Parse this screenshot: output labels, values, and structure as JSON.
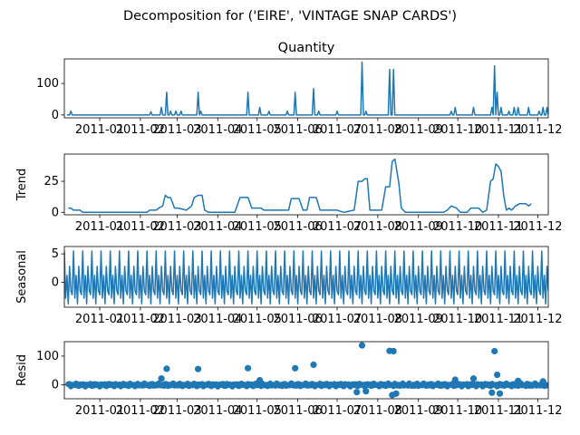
{
  "figure": {
    "suptitle": "Decomposition for ('EIRE', 'VINTAGE SNAP CARDS')",
    "line_color": "#1f77b4"
  },
  "chart_data": [
    {
      "type": "line",
      "title": "Quantity",
      "ylabel": "",
      "xlim": [
        "2010-12-05",
        "2011-12-09"
      ],
      "ylim": [
        -9,
        178
      ],
      "yticks": [
        0,
        100
      ],
      "xticks": [
        "2011-01",
        "2011-02",
        "2011-03",
        "2011-04",
        "2011-05",
        "2011-06",
        "2011-07",
        "2011-08",
        "2011-09",
        "2011-10",
        "2011-11",
        "2011-12"
      ],
      "baseline": 0,
      "points": [
        [
          "2010-12-10",
          12
        ],
        [
          "2011-02-09",
          10
        ],
        [
          "2011-02-17",
          24
        ],
        [
          "2011-02-21",
          72
        ],
        [
          "2011-02-24",
          12
        ],
        [
          "2011-02-28",
          12
        ],
        [
          "2011-03-04",
          12
        ],
        [
          "2011-03-17",
          72
        ],
        [
          "2011-03-19",
          12
        ],
        [
          "2011-04-24",
          72
        ],
        [
          "2011-05-03",
          24
        ],
        [
          "2011-05-10",
          12
        ],
        [
          "2011-05-24",
          12
        ],
        [
          "2011-05-30",
          72
        ],
        [
          "2011-06-13",
          84
        ],
        [
          "2011-06-17",
          12
        ],
        [
          "2011-07-01",
          12
        ],
        [
          "2011-07-20",
          168
        ],
        [
          "2011-07-23",
          12
        ],
        [
          "2011-08-10",
          144
        ],
        [
          "2011-08-13",
          144
        ],
        [
          "2011-09-26",
          12
        ],
        [
          "2011-09-29",
          24
        ],
        [
          "2011-10-13",
          24
        ],
        [
          "2011-10-27",
          24
        ],
        [
          "2011-10-29",
          156
        ],
        [
          "2011-10-31",
          72
        ],
        [
          "2011-11-03",
          24
        ],
        [
          "2011-11-09",
          12
        ],
        [
          "2011-11-13",
          24
        ],
        [
          "2011-11-16",
          24
        ],
        [
          "2011-11-24",
          24
        ],
        [
          "2011-12-02",
          12
        ],
        [
          "2011-12-05",
          24
        ],
        [
          "2011-12-08",
          24
        ]
      ]
    },
    {
      "type": "line",
      "ylabel": "Trend",
      "xlim": [
        "2010-12-05",
        "2011-12-09"
      ],
      "ylim": [
        -2,
        47
      ],
      "yticks": [
        0,
        25
      ],
      "xticks": [
        "2011-01",
        "2011-02",
        "2011-03",
        "2011-04",
        "2011-05",
        "2011-06",
        "2011-07",
        "2011-08",
        "2011-09",
        "2011-10",
        "2011-11",
        "2011-12"
      ],
      "points": [
        [
          "2010-12-08",
          3.4
        ],
        [
          "2010-12-10",
          3.4
        ],
        [
          "2010-12-12",
          1.7
        ],
        [
          "2010-12-17",
          1.7
        ],
        [
          "2010-12-19",
          0
        ],
        [
          "2011-02-06",
          0
        ],
        [
          "2011-02-08",
          1.7
        ],
        [
          "2011-02-13",
          1.7
        ],
        [
          "2011-02-15",
          3.4
        ],
        [
          "2011-02-18",
          5.1
        ],
        [
          "2011-02-20",
          13.7
        ],
        [
          "2011-02-22",
          11.9
        ],
        [
          "2011-02-24",
          11.9
        ],
        [
          "2011-02-27",
          3.4
        ],
        [
          "2011-03-02",
          3.4
        ],
        [
          "2011-03-08",
          1.7
        ],
        [
          "2011-03-12",
          5.1
        ],
        [
          "2011-03-14",
          11.9
        ],
        [
          "2011-03-17",
          13.7
        ],
        [
          "2011-03-20",
          13.7
        ],
        [
          "2011-03-22",
          1.7
        ],
        [
          "2011-03-25",
          0
        ],
        [
          "2011-04-14",
          0
        ],
        [
          "2011-04-18",
          12
        ],
        [
          "2011-04-24",
          12
        ],
        [
          "2011-04-27",
          3.4
        ],
        [
          "2011-05-01",
          3.4
        ],
        [
          "2011-05-04",
          3.4
        ],
        [
          "2011-05-06",
          1.7
        ],
        [
          "2011-05-10",
          1.7
        ],
        [
          "2011-05-14",
          1.7
        ],
        [
          "2011-05-20",
          1.7
        ],
        [
          "2011-05-25",
          1.7
        ],
        [
          "2011-05-27",
          11.1
        ],
        [
          "2011-06-02",
          11.1
        ],
        [
          "2011-06-05",
          1.7
        ],
        [
          "2011-06-08",
          1.7
        ],
        [
          "2011-06-10",
          12
        ],
        [
          "2011-06-15",
          12
        ],
        [
          "2011-06-18",
          1.7
        ],
        [
          "2011-06-26",
          1.7
        ],
        [
          "2011-07-01",
          1.7
        ],
        [
          "2011-07-06",
          0
        ],
        [
          "2011-07-14",
          1.7
        ],
        [
          "2011-07-17",
          25
        ],
        [
          "2011-07-20",
          25
        ],
        [
          "2011-07-22",
          27
        ],
        [
          "2011-07-24",
          27
        ],
        [
          "2011-07-26",
          1.7
        ],
        [
          "2011-08-01",
          1.7
        ],
        [
          "2011-08-04",
          1.7
        ],
        [
          "2011-08-07",
          20.6
        ],
        [
          "2011-08-10",
          20.6
        ],
        [
          "2011-08-12",
          41
        ],
        [
          "2011-08-14",
          43
        ],
        [
          "2011-08-17",
          24
        ],
        [
          "2011-08-19",
          3.4
        ],
        [
          "2011-08-22",
          0
        ],
        [
          "2011-09-20",
          0
        ],
        [
          "2011-09-23",
          1.7
        ],
        [
          "2011-09-26",
          5.1
        ],
        [
          "2011-09-30",
          3.4
        ],
        [
          "2011-10-03",
          0
        ],
        [
          "2011-10-08",
          0
        ],
        [
          "2011-10-11",
          3.4
        ],
        [
          "2011-10-17",
          3.4
        ],
        [
          "2011-10-20",
          0
        ],
        [
          "2011-10-23",
          1.7
        ],
        [
          "2011-10-26",
          25
        ],
        [
          "2011-10-28",
          27
        ],
        [
          "2011-10-30",
          39
        ],
        [
          "2011-11-01",
          37
        ],
        [
          "2011-11-03",
          33
        ],
        [
          "2011-11-05",
          13.7
        ],
        [
          "2011-11-07",
          1.7
        ],
        [
          "2011-11-09",
          3.4
        ],
        [
          "2011-11-11",
          1.7
        ],
        [
          "2011-11-14",
          5.1
        ],
        [
          "2011-11-17",
          6.9
        ],
        [
          "2011-11-22",
          6.9
        ],
        [
          "2011-11-24",
          5.1
        ],
        [
          "2011-11-26",
          6.9
        ]
      ]
    },
    {
      "type": "line",
      "ylabel": "Seasonal",
      "xlim": [
        "2010-12-05",
        "2011-12-09"
      ],
      "ylim": [
        -4.4,
        6.3
      ],
      "yticks": [
        0,
        5
      ],
      "xticks": [
        "2011-01",
        "2011-02",
        "2011-03",
        "2011-04",
        "2011-05",
        "2011-06",
        "2011-07",
        "2011-08",
        "2011-09",
        "2011-10",
        "2011-11",
        "2011-12"
      ],
      "start": "2010-12-05",
      "end": "2011-12-09",
      "period_days": 7,
      "cycle": [
        5.5,
        -2.8,
        1.2,
        -3.8,
        2.8,
        -1.5,
        -2.2
      ]
    },
    {
      "type": "scatter",
      "ylabel": "Resid",
      "xlim": [
        "2010-12-05",
        "2011-12-09"
      ],
      "ylim": [
        -48,
        150
      ],
      "yticks": [
        0,
        100
      ],
      "xticks": [
        "2011-01",
        "2011-02",
        "2011-03",
        "2011-04",
        "2011-05",
        "2011-06",
        "2011-07",
        "2011-08",
        "2011-09",
        "2011-10",
        "2011-11",
        "2011-12"
      ],
      "start": "2010-12-08",
      "end": "2011-12-08",
      "background_points": "small residuals near zero on each day",
      "outliers": [
        [
          "2011-02-17",
          22
        ],
        [
          "2011-02-21",
          56
        ],
        [
          "2011-03-17",
          55
        ],
        [
          "2011-04-24",
          58
        ],
        [
          "2011-05-03",
          16
        ],
        [
          "2011-05-30",
          58
        ],
        [
          "2011-06-13",
          70
        ],
        [
          "2011-07-20",
          137
        ],
        [
          "2011-07-16",
          -25
        ],
        [
          "2011-07-23",
          -22
        ],
        [
          "2011-08-10",
          118
        ],
        [
          "2011-08-13",
          117
        ],
        [
          "2011-08-12",
          -35
        ],
        [
          "2011-08-15",
          -30
        ],
        [
          "2011-09-29",
          18
        ],
        [
          "2011-10-13",
          22
        ],
        [
          "2011-10-29",
          117
        ],
        [
          "2011-10-31",
          35
        ],
        [
          "2011-10-27",
          -27
        ],
        [
          "2011-11-02",
          -30
        ],
        [
          "2011-11-16",
          14
        ],
        [
          "2011-12-05",
          12
        ]
      ]
    }
  ]
}
